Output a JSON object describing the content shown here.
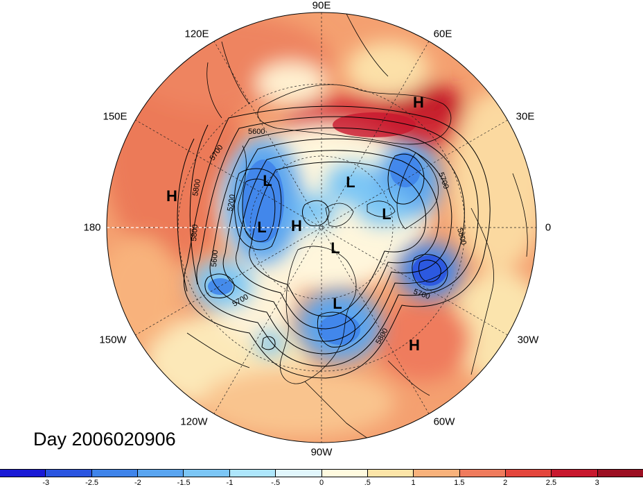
{
  "title": "Day 2006020906",
  "longitude_labels": [
    {
      "id": "lon-90e",
      "text": "90E"
    },
    {
      "id": "lon-60e",
      "text": "60E"
    },
    {
      "id": "lon-30e",
      "text": "30E"
    },
    {
      "id": "lon-0",
      "text": "0"
    },
    {
      "id": "lon-30w",
      "text": "30W"
    },
    {
      "id": "lon-60w",
      "text": "60W"
    },
    {
      "id": "lon-90w",
      "text": "90W"
    },
    {
      "id": "lon-120w",
      "text": "120W"
    },
    {
      "id": "lon-150w",
      "text": "150W"
    },
    {
      "id": "lon-180",
      "text": "180"
    },
    {
      "id": "lon-150e",
      "text": "150E"
    },
    {
      "id": "lon-120e",
      "text": "120E"
    }
  ],
  "pressure_centers": [
    {
      "label": "H",
      "name": "high-center-russia"
    },
    {
      "label": "H",
      "name": "high-center-north-pacific"
    },
    {
      "label": "H",
      "name": "high-center-arctic"
    },
    {
      "label": "H",
      "name": "high-center-atlantic"
    },
    {
      "label": "L",
      "name": "low-center-siberia-north"
    },
    {
      "label": "L",
      "name": "low-center-siberia-south"
    },
    {
      "label": "L",
      "name": "low-center-kara"
    },
    {
      "label": "L",
      "name": "low-center-scandinavia"
    },
    {
      "label": "L",
      "name": "low-center-canada-north"
    },
    {
      "label": "L",
      "name": "low-center-hudson"
    }
  ],
  "contour_labels": [
    "5600",
    "5700",
    "5800",
    "5200",
    "5800",
    "5600",
    "5700",
    "5700",
    "5800",
    "5700",
    "5800"
  ],
  "colorbar": {
    "ticks": [
      "-3",
      "-2.5",
      "-2",
      "-1.5",
      "-1",
      "-.5",
      "0",
      ".5",
      "1",
      "1.5",
      "2",
      "2.5",
      "3"
    ],
    "colors": [
      "#1a1ad6",
      "#2a55e0",
      "#3f84ea",
      "#5aa5f0",
      "#7cc6f5",
      "#aee6fb",
      "#e1f6fc",
      "#fffadf",
      "#fce5a8",
      "#f8b27b",
      "#ef7b5d",
      "#e4463d",
      "#c8182e",
      "#9c0f22"
    ]
  }
}
